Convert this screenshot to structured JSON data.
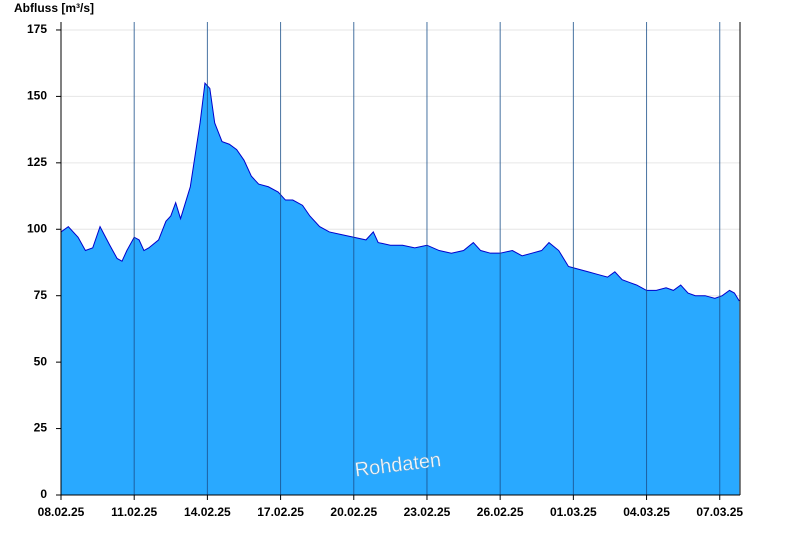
{
  "chart_data": {
    "type": "area",
    "y_label": "Abfluss [m³/s]",
    "annotation": "Rohdaten",
    "x": [
      0,
      0.3,
      0.7,
      1.0,
      1.3,
      1.6,
      2.0,
      2.3,
      2.5,
      2.7,
      3.0,
      3.2,
      3.4,
      3.6,
      4.0,
      4.3,
      4.5,
      4.7,
      4.9,
      5.1,
      5.3,
      5.5,
      5.7,
      5.9,
      6.1,
      6.3,
      6.6,
      6.9,
      7.2,
      7.5,
      7.8,
      8.1,
      8.5,
      8.9,
      9.2,
      9.5,
      9.9,
      10.2,
      10.6,
      11,
      11.5,
      12,
      12.5,
      12.8,
      13,
      13.5,
      14,
      14.5,
      15,
      15.5,
      16,
      16.5,
      16.9,
      17.2,
      17.6,
      18,
      18.5,
      18.9,
      19.3,
      19.7,
      20,
      20.4,
      20.8,
      21.2,
      21.6,
      22,
      22.4,
      22.7,
      23,
      23.3,
      23.6,
      24,
      24.4,
      24.8,
      25.1,
      25.4,
      25.7,
      26,
      26.4,
      26.8,
      27.1,
      27.4,
      27.6,
      27.8
    ],
    "series": [
      {
        "name": "Abfluss",
        "color": "#0000cc",
        "fill": "#29a9ff",
        "values": [
          99,
          101,
          97,
          92,
          93,
          101,
          94,
          89,
          88,
          92,
          97,
          96,
          92,
          93,
          96,
          103,
          105,
          110,
          104,
          110,
          116,
          128,
          140,
          155,
          153,
          140,
          133,
          132,
          130,
          126,
          120,
          117,
          116,
          114,
          111,
          111,
          109,
          105,
          101,
          99,
          98,
          97,
          96,
          99,
          95,
          94,
          94,
          93,
          94,
          92,
          91,
          92,
          95,
          92,
          91,
          91,
          92,
          90,
          91,
          92,
          95,
          92,
          86,
          85,
          84,
          83,
          82,
          84,
          81,
          80,
          79,
          77,
          77,
          78,
          77,
          79,
          76,
          75,
          75,
          74,
          75,
          77,
          76,
          73
        ]
      }
    ],
    "xlim": [
      0,
      27.83
    ],
    "xticks": [
      {
        "value": 0,
        "label": "08.02.25"
      },
      {
        "value": 3,
        "label": "11.02.25"
      },
      {
        "value": 6,
        "label": "14.02.25"
      },
      {
        "value": 9,
        "label": "17.02.25"
      },
      {
        "value": 12,
        "label": "20.02.25"
      },
      {
        "value": 15,
        "label": "23.02.25"
      },
      {
        "value": 18,
        "label": "26.02.25"
      },
      {
        "value": 21,
        "label": "01.03.25"
      },
      {
        "value": 24,
        "label": "04.03.25"
      },
      {
        "value": 27,
        "label": "07.03.25"
      }
    ],
    "ylim": [
      0,
      178
    ],
    "yticks": [
      0,
      25,
      50,
      75,
      100,
      125,
      150,
      175
    ],
    "grid": true
  }
}
